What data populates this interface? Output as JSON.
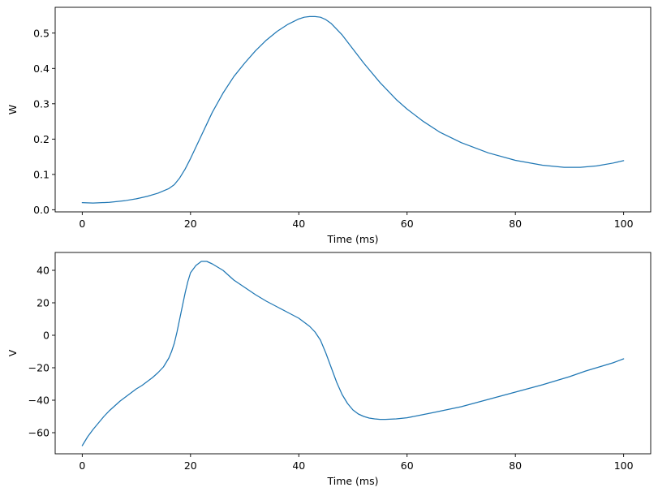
{
  "chart_data": [
    {
      "type": "line",
      "xlabel": "Time (ms)",
      "ylabel": "W",
      "xlim": [
        -5,
        105
      ],
      "ylim": [
        -0.006,
        0.573
      ],
      "xticks": [
        0,
        20,
        40,
        60,
        80,
        100
      ],
      "yticks": [
        0.0,
        0.1,
        0.2,
        0.3,
        0.4,
        0.5
      ],
      "ytick_labels": [
        "0.0",
        "0.1",
        "0.2",
        "0.3",
        "0.4",
        "0.5"
      ],
      "series": [
        {
          "color": "#1f77b4",
          "x": [
            0,
            2,
            5,
            8,
            10,
            12,
            14,
            16,
            17,
            18,
            19,
            20,
            22,
            24,
            26,
            28,
            30,
            32,
            34,
            36,
            38,
            40,
            41,
            42,
            43,
            44,
            45,
            46,
            48,
            50,
            52,
            55,
            58,
            60,
            63,
            66,
            70,
            75,
            80,
            85,
            89,
            92,
            95,
            98,
            100
          ],
          "y": [
            0.02,
            0.019,
            0.021,
            0.026,
            0.031,
            0.038,
            0.047,
            0.06,
            0.071,
            0.09,
            0.115,
            0.145,
            0.21,
            0.275,
            0.33,
            0.377,
            0.415,
            0.45,
            0.48,
            0.505,
            0.525,
            0.54,
            0.545,
            0.547,
            0.547,
            0.545,
            0.538,
            0.527,
            0.495,
            0.455,
            0.415,
            0.36,
            0.312,
            0.285,
            0.25,
            0.22,
            0.19,
            0.161,
            0.14,
            0.126,
            0.12,
            0.12,
            0.124,
            0.132,
            0.139
          ]
        }
      ]
    },
    {
      "type": "line",
      "xlabel": "Time (ms)",
      "ylabel": "V",
      "xlim": [
        -5,
        105
      ],
      "ylim": [
        -73,
        51
      ],
      "xticks": [
        0,
        20,
        40,
        60,
        80,
        100
      ],
      "yticks": [
        -60,
        -40,
        -20,
        0,
        20,
        40
      ],
      "ytick_labels": [
        "−60",
        "−40",
        "−20",
        "0",
        "20",
        "40"
      ],
      "series": [
        {
          "color": "#1f77b4",
          "x": [
            0,
            1,
            2,
            3,
            4,
            5,
            6,
            7,
            8,
            9,
            10,
            11,
            12,
            13,
            14,
            15,
            16,
            16.5,
            17,
            17.5,
            18,
            18.5,
            19,
            19.5,
            20,
            21,
            22,
            23,
            24,
            26,
            28,
            30,
            32,
            34,
            36,
            38,
            40,
            41,
            42,
            43,
            44,
            45,
            46,
            47,
            48,
            49,
            50,
            51,
            52,
            53,
            54,
            55,
            56,
            58,
            60,
            62,
            65,
            70,
            75,
            80,
            85,
            90,
            93,
            96,
            98,
            100
          ],
          "y": [
            -68,
            -62.5,
            -58,
            -54,
            -50,
            -46.5,
            -43.5,
            -40.5,
            -38,
            -35.5,
            -33,
            -31,
            -28.5,
            -26,
            -23,
            -19.5,
            -14,
            -10,
            -5,
            2,
            10,
            18,
            26,
            33,
            38.5,
            43,
            45.5,
            45.5,
            44,
            40,
            34,
            29.5,
            25,
            21,
            17.5,
            14,
            10.5,
            8,
            5.5,
            2,
            -3,
            -11,
            -20,
            -29,
            -36.5,
            -42,
            -46,
            -48.5,
            -50,
            -51,
            -51.5,
            -51.8,
            -51.8,
            -51.5,
            -50.8,
            -49.5,
            -47.5,
            -44,
            -39.5,
            -35,
            -30.5,
            -25.5,
            -22,
            -19,
            -17,
            -14.5
          ]
        }
      ]
    }
  ]
}
